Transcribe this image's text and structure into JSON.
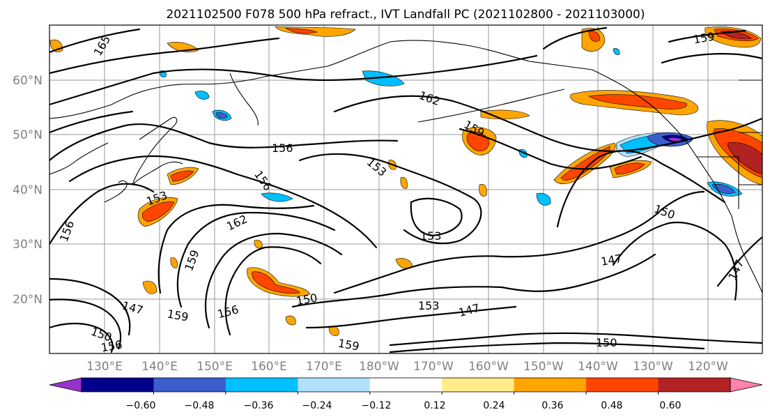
{
  "title": "2021102500 F078 500 hPa refract., IVT Landfall PC (2021102800 - 2021103000)",
  "map": {
    "lat_labels": [
      "60°N",
      "50°N",
      "40°N",
      "30°N",
      "20°N"
    ],
    "lon_labels": [
      "130°E",
      "140°E",
      "150°E",
      "160°E",
      "170°E",
      "180°W",
      "170°W",
      "160°W",
      "150°W",
      "140°W",
      "130°W",
      "120°W"
    ],
    "contour_labels": [
      "165",
      "162",
      "159",
      "156",
      "153",
      "153",
      "156",
      "162",
      "159",
      "156",
      "153",
      "147",
      "150",
      "150",
      "153",
      "147",
      "156",
      "159",
      "159",
      "150",
      "147",
      "156",
      "147",
      "150",
      "159"
    ]
  },
  "colorbar": {
    "ticks": [
      "−0.60",
      "−0.48",
      "−0.36",
      "−0.24",
      "−0.12",
      "0.12",
      "0.24",
      "0.36",
      "0.48",
      "0.60"
    ],
    "colors": [
      "#9932cc",
      "#00008b",
      "#3a5fcd",
      "#00bfff",
      "#b0e2ff",
      "#ffffff",
      "#ffec8b",
      "#ffa500",
      "#ff4500",
      "#b22222",
      "#ff82ab"
    ]
  }
}
